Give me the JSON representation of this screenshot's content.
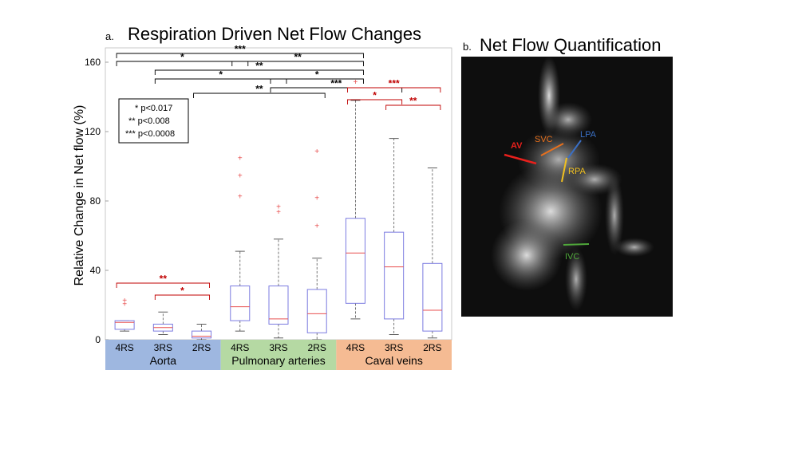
{
  "panel_a": {
    "letter": "a.",
    "title": "Respiration Driven Net Flow Changes",
    "legend": [
      "* p<0.017",
      "** p<0.008",
      "*** p<0.0008"
    ]
  },
  "panel_b": {
    "letter": "b.",
    "title": "Net Flow Quantification",
    "labels": [
      {
        "text": "AV",
        "color": "#e8201c"
      },
      {
        "text": "SVC",
        "color": "#e8701c"
      },
      {
        "text": "LPA",
        "color": "#3a6fc4"
      },
      {
        "text": "RPA",
        "color": "#f0c020"
      },
      {
        "text": "IVC",
        "color": "#4fa83a"
      }
    ]
  },
  "chart_data": {
    "type": "box",
    "title": "Respiration Driven Net Flow Changes",
    "ylabel": "Relative Change in Net flow (%)",
    "ylim": [
      0,
      160
    ],
    "yticks": [
      0,
      40,
      80,
      120,
      160
    ],
    "grid": false,
    "categories": [
      "4RS",
      "3RS",
      "2RS",
      "4RS",
      "3RS",
      "2RS",
      "4RS",
      "3RS",
      "2RS"
    ],
    "groups": [
      {
        "name": "Aorta",
        "color": "#9eb7e0",
        "members": [
          0,
          1,
          2
        ]
      },
      {
        "name": "Pulmonary arteries",
        "color": "#b5d9a3",
        "members": [
          3,
          4,
          5
        ]
      },
      {
        "name": "Caval veins",
        "color": "#f5bb93",
        "members": [
          6,
          7,
          8
        ]
      }
    ],
    "boxes": [
      {
        "min": 5,
        "q1": 6,
        "median": 10,
        "q3": 11,
        "max": 11,
        "outliers": [
          21,
          23
        ]
      },
      {
        "min": 3,
        "q1": 5,
        "median": 7,
        "q3": 9,
        "max": 16,
        "outliers": []
      },
      {
        "min": 0,
        "q1": 1,
        "median": 2,
        "q3": 5,
        "max": 9,
        "outliers": []
      },
      {
        "min": 5,
        "q1": 11,
        "median": 19,
        "q3": 31,
        "max": 51,
        "outliers": [
          83,
          95,
          105
        ]
      },
      {
        "min": 1,
        "q1": 9,
        "median": 12,
        "q3": 31,
        "max": 58,
        "outliers": [
          74,
          77
        ]
      },
      {
        "min": 0,
        "q1": 4,
        "median": 15,
        "q3": 29,
        "max": 47,
        "outliers": [
          66,
          82,
          109
        ]
      },
      {
        "min": 12,
        "q1": 21,
        "median": 50,
        "q3": 70,
        "max": 138,
        "outliers": [
          149
        ]
      },
      {
        "min": 3,
        "q1": 12,
        "median": 42,
        "q3": 62,
        "max": 116,
        "outliers": []
      },
      {
        "min": 1,
        "q1": 5,
        "median": 17,
        "q3": 44,
        "max": 99,
        "outliers": []
      }
    ],
    "significance": [
      {
        "from": 0,
        "to": 6,
        "label": "***",
        "color": "#000000"
      },
      {
        "from": 0,
        "to": 3,
        "label": "*",
        "color": "#000000"
      },
      {
        "from": 3,
        "to": 6,
        "label": "**",
        "color": "#000000"
      },
      {
        "from": 1,
        "to": 6,
        "label": "**",
        "color": "#000000"
      },
      {
        "from": 1,
        "to": 4,
        "label": "*",
        "color": "#000000"
      },
      {
        "from": 4,
        "to": 6,
        "label": "*",
        "color": "#000000"
      },
      {
        "from": 4,
        "to": 7,
        "label": "***",
        "color": "#000000"
      },
      {
        "from": 2,
        "to": 5,
        "label": "**",
        "color": "#000000"
      },
      {
        "from": 6,
        "to": 8,
        "label": "***",
        "color": "#c00000"
      },
      {
        "from": 6,
        "to": 7,
        "label": "*",
        "color": "#c00000"
      },
      {
        "from": 7,
        "to": 8,
        "label": "**",
        "color": "#c00000"
      },
      {
        "from": 0,
        "to": 2,
        "label": "**",
        "color": "#c00000"
      },
      {
        "from": 1,
        "to": 2,
        "label": "*",
        "color": "#c00000"
      }
    ],
    "colors": {
      "box": "#7b7be0",
      "median": "#e85050",
      "whisker": "#555555",
      "outlier": "#e85050"
    }
  }
}
